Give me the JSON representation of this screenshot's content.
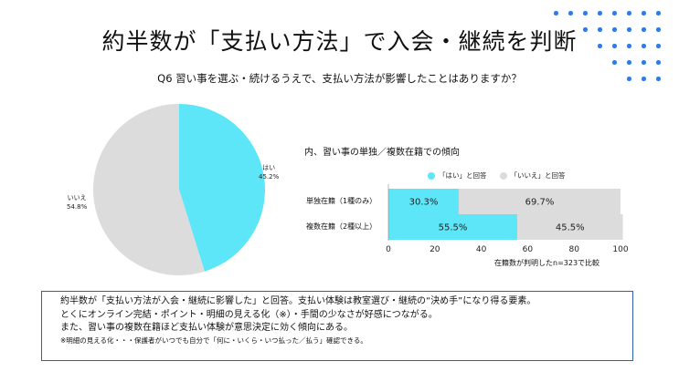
{
  "header": {
    "title": "約半数が「支払い方法」で入会・継続を判断",
    "question": "Q6 習い事を選ぶ・続けるうえで、支払い方法が影響したことはありますか？"
  },
  "colors": {
    "yes": "#5ce6f8",
    "no": "#dcdcdc",
    "accent": "#2f7de1",
    "border": "#2f5fb8"
  },
  "pie": {
    "slices": [
      {
        "label": "はい",
        "value_text": "45.2%",
        "value": 45.2,
        "color": "#5ce6f8"
      },
      {
        "label": "いいえ",
        "value_text": "54.8%",
        "value": 54.8,
        "color": "#dcdcdc"
      }
    ]
  },
  "breakdown": {
    "title": "内、習い事の単独／複数在籍での傾向",
    "legend": {
      "yes": "「はい」と回答",
      "no": "「いいえ」と回答"
    },
    "rows": [
      {
        "label": "単独在籍（1種のみ）"
      },
      {
        "label": "複数在籍（2種以上）"
      }
    ],
    "note": "在籍数が判明したn=323で比較"
  },
  "summary": {
    "line1": "約半数が「支払い方法が入会・継続に影響した」と回答。支払い体験は教室選び・継続の“決め手”になり得る要素。",
    "line2": "とくにオンライン完結・ポイント・明細の見える化（※）・手間の少なさが好感につながる。",
    "line3": "また、習い事の複数在籍ほど支払い体験が意思決定に効く傾向にある。",
    "footnote": "※明細の見える化・・・保護者がいつでも自分で「何に・いくら・いつ払った／払う」確認できる。"
  },
  "chart_data": [
    {
      "type": "pie",
      "title": "",
      "slices": [
        {
          "label": "はい",
          "value": 45.2
        },
        {
          "label": "いいえ",
          "value": 54.8
        }
      ]
    },
    {
      "type": "bar",
      "orientation": "horizontal",
      "stacked": true,
      "title": "内、習い事の単独／複数在籍での傾向",
      "categories": [
        "単独在籍（1種のみ）",
        "複数在籍（2種以上）"
      ],
      "series": [
        {
          "name": "「はい」と回答",
          "values": [
            30.3,
            55.5
          ],
          "color": "#5ce6f8"
        },
        {
          "name": "「いいえ」と回答",
          "values": [
            69.7,
            45.5
          ],
          "color": "#dcdcdc"
        }
      ],
      "data_labels": [
        [
          "30.3%",
          "69.7%"
        ],
        [
          "55.5%",
          "45.5%"
        ]
      ],
      "xlim": [
        0,
        100
      ],
      "xticks": [
        "0",
        "20",
        "40",
        "60",
        "80",
        "100"
      ],
      "legend": "top",
      "grid": false
    }
  ]
}
